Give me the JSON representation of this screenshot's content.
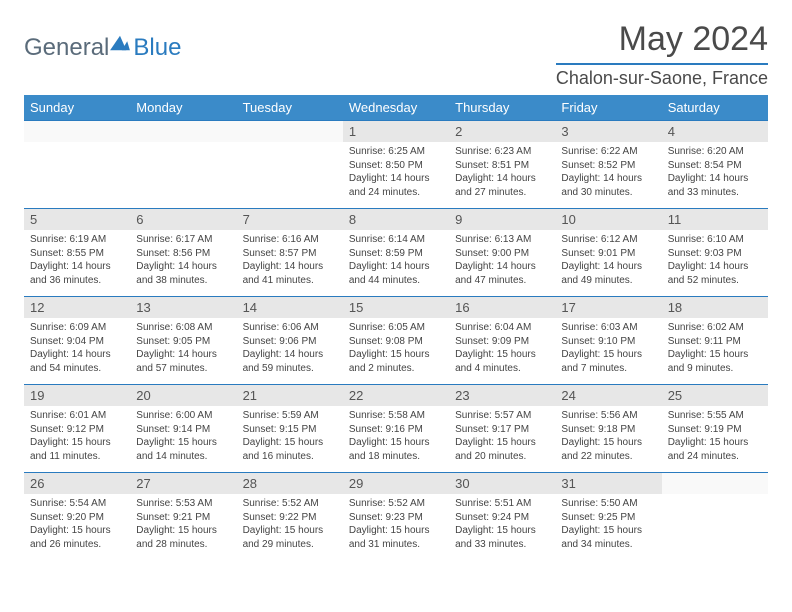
{
  "brand": {
    "name_a": "General",
    "name_b": "Blue"
  },
  "title": "May 2024",
  "location": "Chalon-sur-Saone, France",
  "colors": {
    "header_bg": "#3b8bc9",
    "header_border": "#2a7bbf",
    "daynum_bg": "#e7e7e7",
    "text": "#4a4a4a"
  },
  "weekdays": [
    "Sunday",
    "Monday",
    "Tuesday",
    "Wednesday",
    "Thursday",
    "Friday",
    "Saturday"
  ],
  "weeks": [
    [
      null,
      null,
      null,
      {
        "d": "1",
        "sr": "6:25 AM",
        "ss": "8:50 PM",
        "dl": "14 hours and 24 minutes."
      },
      {
        "d": "2",
        "sr": "6:23 AM",
        "ss": "8:51 PM",
        "dl": "14 hours and 27 minutes."
      },
      {
        "d": "3",
        "sr": "6:22 AM",
        "ss": "8:52 PM",
        "dl": "14 hours and 30 minutes."
      },
      {
        "d": "4",
        "sr": "6:20 AM",
        "ss": "8:54 PM",
        "dl": "14 hours and 33 minutes."
      }
    ],
    [
      {
        "d": "5",
        "sr": "6:19 AM",
        "ss": "8:55 PM",
        "dl": "14 hours and 36 minutes."
      },
      {
        "d": "6",
        "sr": "6:17 AM",
        "ss": "8:56 PM",
        "dl": "14 hours and 38 minutes."
      },
      {
        "d": "7",
        "sr": "6:16 AM",
        "ss": "8:57 PM",
        "dl": "14 hours and 41 minutes."
      },
      {
        "d": "8",
        "sr": "6:14 AM",
        "ss": "8:59 PM",
        "dl": "14 hours and 44 minutes."
      },
      {
        "d": "9",
        "sr": "6:13 AM",
        "ss": "9:00 PM",
        "dl": "14 hours and 47 minutes."
      },
      {
        "d": "10",
        "sr": "6:12 AM",
        "ss": "9:01 PM",
        "dl": "14 hours and 49 minutes."
      },
      {
        "d": "11",
        "sr": "6:10 AM",
        "ss": "9:03 PM",
        "dl": "14 hours and 52 minutes."
      }
    ],
    [
      {
        "d": "12",
        "sr": "6:09 AM",
        "ss": "9:04 PM",
        "dl": "14 hours and 54 minutes."
      },
      {
        "d": "13",
        "sr": "6:08 AM",
        "ss": "9:05 PM",
        "dl": "14 hours and 57 minutes."
      },
      {
        "d": "14",
        "sr": "6:06 AM",
        "ss": "9:06 PM",
        "dl": "14 hours and 59 minutes."
      },
      {
        "d": "15",
        "sr": "6:05 AM",
        "ss": "9:08 PM",
        "dl": "15 hours and 2 minutes."
      },
      {
        "d": "16",
        "sr": "6:04 AM",
        "ss": "9:09 PM",
        "dl": "15 hours and 4 minutes."
      },
      {
        "d": "17",
        "sr": "6:03 AM",
        "ss": "9:10 PM",
        "dl": "15 hours and 7 minutes."
      },
      {
        "d": "18",
        "sr": "6:02 AM",
        "ss": "9:11 PM",
        "dl": "15 hours and 9 minutes."
      }
    ],
    [
      {
        "d": "19",
        "sr": "6:01 AM",
        "ss": "9:12 PM",
        "dl": "15 hours and 11 minutes."
      },
      {
        "d": "20",
        "sr": "6:00 AM",
        "ss": "9:14 PM",
        "dl": "15 hours and 14 minutes."
      },
      {
        "d": "21",
        "sr": "5:59 AM",
        "ss": "9:15 PM",
        "dl": "15 hours and 16 minutes."
      },
      {
        "d": "22",
        "sr": "5:58 AM",
        "ss": "9:16 PM",
        "dl": "15 hours and 18 minutes."
      },
      {
        "d": "23",
        "sr": "5:57 AM",
        "ss": "9:17 PM",
        "dl": "15 hours and 20 minutes."
      },
      {
        "d": "24",
        "sr": "5:56 AM",
        "ss": "9:18 PM",
        "dl": "15 hours and 22 minutes."
      },
      {
        "d": "25",
        "sr": "5:55 AM",
        "ss": "9:19 PM",
        "dl": "15 hours and 24 minutes."
      }
    ],
    [
      {
        "d": "26",
        "sr": "5:54 AM",
        "ss": "9:20 PM",
        "dl": "15 hours and 26 minutes."
      },
      {
        "d": "27",
        "sr": "5:53 AM",
        "ss": "9:21 PM",
        "dl": "15 hours and 28 minutes."
      },
      {
        "d": "28",
        "sr": "5:52 AM",
        "ss": "9:22 PM",
        "dl": "15 hours and 29 minutes."
      },
      {
        "d": "29",
        "sr": "5:52 AM",
        "ss": "9:23 PM",
        "dl": "15 hours and 31 minutes."
      },
      {
        "d": "30",
        "sr": "5:51 AM",
        "ss": "9:24 PM",
        "dl": "15 hours and 33 minutes."
      },
      {
        "d": "31",
        "sr": "5:50 AM",
        "ss": "9:25 PM",
        "dl": "15 hours and 34 minutes."
      },
      null
    ]
  ],
  "labels": {
    "sunrise": "Sunrise:",
    "sunset": "Sunset:",
    "daylight": "Daylight:"
  }
}
